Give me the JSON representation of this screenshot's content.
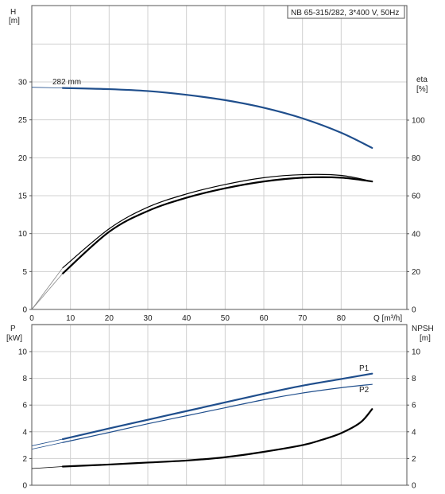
{
  "chart_data": [
    {
      "type": "line",
      "title": "NB 65-315/282, 3*400 V, 50Hz",
      "xlabel": "Q [m³/h]",
      "ylabel_left": [
        "H",
        "[m]"
      ],
      "ylabel_right": [
        "eta",
        "[%]"
      ],
      "xlim": [
        0,
        90
      ],
      "ylim_left": [
        0,
        35
      ],
      "ylim_right": [
        0,
        140
      ],
      "x_ticks": [
        "0",
        "10",
        "20",
        "30",
        "40",
        "50",
        "60",
        "70",
        "80",
        "Q [m³/h]"
      ],
      "y_ticks_left": [
        "0",
        "5",
        "10",
        "15",
        "20",
        "25",
        "30"
      ],
      "y_ticks_right": [
        "0",
        "20",
        "40",
        "60",
        "80",
        "100"
      ],
      "grid": true,
      "annotation": "282 mm",
      "series": [
        {
          "name": "282 mm",
          "axis": "left",
          "color": "#1f4e8c",
          "x": [
            8,
            20,
            30,
            40,
            50,
            60,
            70,
            80,
            88
          ],
          "y": [
            29.2,
            29.05,
            28.8,
            28.3,
            27.6,
            26.6,
            25.2,
            23.3,
            21.3
          ]
        },
        {
          "axis": "right",
          "color": "#000000",
          "x": [
            8,
            20,
            30,
            40,
            50,
            60,
            70,
            80,
            88
          ],
          "y": [
            19,
            41,
            52,
            59,
            64,
            67.6,
            69.6,
            69.6,
            67.6
          ]
        },
        {
          "axis": "right",
          "color": "#000000",
          "x": [
            8,
            20,
            30,
            40,
            50,
            60,
            70,
            80,
            88
          ],
          "y": [
            22,
            42.6,
            54,
            61,
            66,
            69.6,
            71.2,
            70.8,
            67.6
          ]
        }
      ]
    },
    {
      "type": "line",
      "xlabel": "",
      "ylabel_left": [
        "P",
        "[kW]"
      ],
      "ylabel_right": [
        "NPSH",
        "[m]"
      ],
      "xlim": [
        0,
        90
      ],
      "ylim_left": [
        0,
        12
      ],
      "ylim_right": [
        0,
        12
      ],
      "y_ticks_left": [
        "0",
        "2",
        "4",
        "6",
        "8",
        "10"
      ],
      "y_ticks_right": [
        "0",
        "2",
        "4",
        "6",
        "8",
        "10"
      ],
      "grid": true,
      "series": [
        {
          "name": "P1",
          "axis": "left",
          "color": "#1f4e8c",
          "x": [
            8,
            20,
            30,
            40,
            50,
            60,
            70,
            80,
            88
          ],
          "y": [
            3.45,
            4.25,
            4.9,
            5.55,
            6.2,
            6.85,
            7.45,
            7.95,
            8.35
          ]
        },
        {
          "name": "P2",
          "axis": "left",
          "color": "#1f4e8c",
          "x": [
            8,
            20,
            30,
            40,
            50,
            60,
            70,
            80,
            88
          ],
          "y": [
            3.2,
            3.95,
            4.6,
            5.2,
            5.8,
            6.4,
            6.9,
            7.3,
            7.55
          ]
        },
        {
          "axis": "right",
          "color": "#000000",
          "x": [
            8,
            20,
            30,
            40,
            50,
            60,
            70,
            75,
            80,
            85,
            88
          ],
          "y": [
            1.4,
            1.55,
            1.7,
            1.85,
            2.1,
            2.5,
            3.0,
            3.4,
            3.9,
            4.7,
            5.7
          ]
        }
      ]
    }
  ]
}
